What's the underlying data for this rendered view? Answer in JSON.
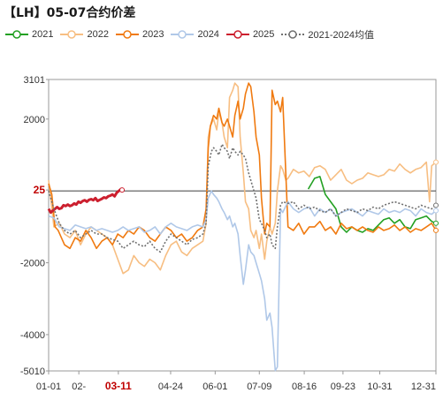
{
  "title": "【LH】05-07合约价差",
  "legend": [
    {
      "name": "2021",
      "color": "#22a022",
      "dash": ""
    },
    {
      "name": "2022",
      "color": "#f7be82",
      "dash": ""
    },
    {
      "name": "2023",
      "color": "#f07a10",
      "dash": ""
    },
    {
      "name": "2024",
      "color": "#b0c8e8",
      "dash": ""
    },
    {
      "name": "2025",
      "color": "#cc1f2e",
      "dash": ""
    },
    {
      "name": "2021-2024均值",
      "color": "#707070",
      "dash": "2,2"
    }
  ],
  "chart_data": {
    "type": "line",
    "title": "【LH】05-07合约价差",
    "xlabel": "",
    "ylabel": "",
    "ylim": [
      -5010,
      3101
    ],
    "grid": false,
    "legend_position": "top",
    "x_ticks": [
      "01-01",
      "02-",
      "03-11",
      "04-24",
      "06-01",
      "07-09",
      "08-16",
      "09-23",
      "10-31",
      "12-31"
    ],
    "highlight_x_tick": "03-11",
    "y_ticks": [
      3101,
      2000,
      25,
      -2000,
      -4000,
      -5010
    ],
    "highlight_y_tick": 25,
    "x_domain": [
      0,
      364
    ],
    "series": [
      {
        "name": "2021",
        "color": "#22a022",
        "x": [
          244,
          250,
          255,
          260,
          265,
          270,
          275,
          280,
          285,
          290,
          295,
          300,
          305,
          310,
          315,
          320,
          325,
          330,
          335,
          340,
          345,
          350,
          355,
          360,
          364
        ],
        "y": [
          50,
          350,
          400,
          -100,
          -300,
          -500,
          -1000,
          -1150,
          -1000,
          -1100,
          -1150,
          -1050,
          -1100,
          -950,
          -800,
          -750,
          -900,
          -800,
          -1000,
          -1050,
          -800,
          -750,
          -700,
          -850,
          -900
        ]
      },
      {
        "name": "2022",
        "color": "#f7be82",
        "x": [
          0,
          5,
          10,
          15,
          20,
          25,
          30,
          35,
          40,
          45,
          50,
          55,
          60,
          65,
          70,
          75,
          80,
          85,
          90,
          95,
          100,
          105,
          110,
          115,
          120,
          125,
          130,
          135,
          140,
          145,
          148,
          150,
          152,
          155,
          158,
          160,
          163,
          165,
          168,
          170,
          173,
          175,
          178,
          180,
          183,
          185,
          188,
          190,
          193,
          195,
          198,
          200,
          203,
          205,
          208,
          210,
          213,
          215,
          218,
          220,
          223,
          225,
          230,
          235,
          240,
          245,
          250,
          255,
          260,
          265,
          270,
          275,
          280,
          285,
          290,
          295,
          300,
          305,
          310,
          315,
          320,
          325,
          330,
          335,
          340,
          345,
          350,
          355,
          358,
          360,
          364
        ],
        "y": [
          300,
          -1000,
          -900,
          -1200,
          -1300,
          -1100,
          -1500,
          -1200,
          -1000,
          -1100,
          -1200,
          -1300,
          -1500,
          -1900,
          -2300,
          -2200,
          -1800,
          -2000,
          -2100,
          -1900,
          -2000,
          -2200,
          -1800,
          -1500,
          -1400,
          -1700,
          -1800,
          -1600,
          -1500,
          -1400,
          -900,
          1500,
          1800,
          2000,
          1700,
          2200,
          1900,
          1500,
          1200,
          2600,
          2800,
          3000,
          2900,
          1500,
          500,
          -300,
          -500,
          -1100,
          -1300,
          -1100,
          -1600,
          -1200,
          -1900,
          -1400,
          -1000,
          -1200,
          -900,
          0,
          700,
          600,
          300,
          350,
          600,
          500,
          550,
          400,
          650,
          700,
          600,
          300,
          450,
          600,
          300,
          200,
          300,
          350,
          500,
          450,
          400,
          450,
          600,
          550,
          750,
          600,
          500,
          600,
          650,
          800,
          -300,
          700,
          800
        ]
      },
      {
        "name": "2023",
        "color": "#f07a10",
        "x": [
          0,
          3,
          6,
          9,
          12,
          15,
          20,
          25,
          30,
          35,
          40,
          45,
          50,
          55,
          60,
          65,
          70,
          75,
          80,
          85,
          90,
          95,
          100,
          105,
          110,
          115,
          120,
          125,
          130,
          135,
          140,
          145,
          148,
          150,
          152,
          155,
          158,
          160,
          163,
          165,
          168,
          170,
          173,
          175,
          178,
          180,
          183,
          185,
          188,
          190,
          193,
          195,
          198,
          200,
          203,
          205,
          208,
          210,
          213,
          215,
          218,
          220,
          225,
          230,
          235,
          240,
          245,
          250,
          255,
          260,
          265,
          270,
          275,
          280,
          285,
          290,
          295,
          300,
          305,
          310,
          315,
          320,
          325,
          330,
          335,
          340,
          345,
          350,
          355,
          360,
          364
        ],
        "y": [
          200,
          -100,
          -1000,
          -1100,
          -1300,
          -1500,
          -1600,
          -1300,
          -1400,
          -1100,
          -1300,
          -1600,
          -1400,
          -1300,
          -1500,
          -1200,
          -1300,
          -1100,
          -1200,
          -1000,
          -1100,
          -1300,
          -1400,
          -1200,
          -1000,
          -1100,
          -1300,
          -1200,
          -1400,
          -1300,
          -1100,
          -1000,
          -500,
          1200,
          1800,
          2100,
          2000,
          2300,
          1900,
          1800,
          2000,
          1800,
          1500,
          2100,
          2500,
          2000,
          2300,
          2700,
          3000,
          2900,
          2200,
          1500,
          1000,
          -200,
          -1200,
          -900,
          -1000,
          2800,
          2400,
          2500,
          2200,
          2600,
          -1000,
          -1100,
          -900,
          -1200,
          -1000,
          -1000,
          -850,
          -1100,
          -1000,
          -1200,
          -900,
          -1050,
          -1000,
          -1100,
          -1000,
          -1100,
          -1150,
          -1000,
          -1100,
          -1050,
          -950,
          -1100,
          -1000,
          -1150,
          -1050,
          -1100,
          -1000,
          -900,
          -1100
        ]
      },
      {
        "name": "2024",
        "color": "#b0c8e8",
        "x": [
          0,
          5,
          10,
          15,
          20,
          25,
          30,
          35,
          40,
          45,
          50,
          55,
          60,
          65,
          70,
          75,
          80,
          85,
          90,
          95,
          100,
          105,
          110,
          115,
          120,
          125,
          130,
          135,
          140,
          145,
          148,
          150,
          153,
          155,
          158,
          160,
          163,
          165,
          168,
          170,
          173,
          175,
          178,
          180,
          183,
          185,
          188,
          190,
          193,
          195,
          198,
          200,
          203,
          205,
          208,
          210,
          213,
          215,
          218,
          220,
          225,
          230,
          235,
          240,
          245,
          250,
          255,
          260,
          265,
          270,
          275,
          280,
          285,
          290,
          295,
          300,
          305,
          310,
          315,
          320,
          325,
          330,
          335,
          340,
          345,
          350,
          355,
          360,
          364
        ],
        "y": [
          -700,
          -750,
          -1000,
          -1050,
          -1100,
          -950,
          -1000,
          -1050,
          -1000,
          -1100,
          -1050,
          -1100,
          -1150,
          -1100,
          -1000,
          -1100,
          -1050,
          -1000,
          -1150,
          -1100,
          -1000,
          -1200,
          -1000,
          -900,
          -1000,
          -1050,
          -1100,
          -1000,
          -950,
          -1000,
          -800,
          -200,
          0,
          -100,
          -200,
          -300,
          -500,
          -600,
          -800,
          -700,
          -1000,
          -900,
          -1200,
          -1800,
          -2600,
          -2200,
          -1500,
          -1700,
          -1800,
          -2000,
          -2300,
          -2500,
          -3000,
          -3600,
          -3400,
          -3800,
          -5000,
          -4900,
          -500,
          -600,
          -300,
          -500,
          -600,
          -500,
          -450,
          -700,
          -500,
          -600,
          -500,
          -700,
          -600,
          -550,
          -500,
          -600,
          -700,
          -550,
          -600,
          -650,
          -500,
          -600,
          -550,
          -600,
          -500,
          -550,
          -700,
          -500,
          -600,
          -650,
          -550
        ]
      },
      {
        "name": "2025",
        "color": "#cc1f2e",
        "x": [
          0,
          2,
          4,
          6,
          8,
          10,
          12,
          14,
          16,
          18,
          20,
          22,
          24,
          26,
          28,
          30,
          32,
          34,
          36,
          38,
          40,
          42,
          44,
          46,
          48,
          50,
          52,
          54,
          56,
          58,
          60,
          62,
          64,
          66,
          68,
          69
        ],
        "y": [
          -500,
          -600,
          -550,
          -500,
          -450,
          -500,
          -480,
          -400,
          -420,
          -380,
          -420,
          -400,
          -350,
          -380,
          -300,
          -330,
          -280,
          -260,
          -300,
          -250,
          -230,
          -260,
          -200,
          -280,
          -250,
          -220,
          -180,
          -200,
          -150,
          -130,
          -100,
          -150,
          -50,
          0,
          50,
          25
        ]
      },
      {
        "name": "2021-2024均值",
        "color": "#707070",
        "dash": "2,2",
        "x": [
          0,
          5,
          10,
          15,
          20,
          25,
          30,
          35,
          40,
          45,
          50,
          55,
          60,
          65,
          70,
          75,
          80,
          85,
          90,
          95,
          100,
          105,
          110,
          115,
          120,
          125,
          130,
          135,
          140,
          145,
          148,
          150,
          153,
          155,
          158,
          160,
          163,
          165,
          168,
          170,
          173,
          175,
          178,
          180,
          183,
          185,
          188,
          190,
          193,
          195,
          198,
          200,
          203,
          205,
          208,
          210,
          213,
          215,
          218,
          220,
          225,
          230,
          235,
          240,
          245,
          250,
          255,
          260,
          265,
          270,
          275,
          280,
          285,
          290,
          295,
          300,
          305,
          310,
          315,
          320,
          325,
          330,
          335,
          340,
          345,
          350,
          355,
          360,
          364
        ],
        "y": [
          0,
          -500,
          -900,
          -1100,
          -1200,
          -1100,
          -1300,
          -1200,
          -1100,
          -1200,
          -1200,
          -1300,
          -1350,
          -1400,
          -1600,
          -1500,
          -1400,
          -1500,
          -1550,
          -1400,
          -1600,
          -1700,
          -1400,
          -1200,
          -1300,
          -1400,
          -1500,
          -1350,
          -1300,
          -1200,
          -900,
          700,
          1100,
          1200,
          1100,
          1000,
          1300,
          1200,
          1100,
          900,
          1200,
          1100,
          1000,
          1100,
          1000,
          900,
          500,
          300,
          0,
          -200,
          -800,
          -900,
          -1100,
          -1300,
          -1200,
          -1500,
          -1600,
          -1000,
          -400,
          -300,
          -350,
          -300,
          -500,
          -400,
          -500,
          -450,
          -550,
          -600,
          -500,
          -700,
          -600,
          -500,
          -550,
          -600,
          -500,
          -550,
          -450,
          -500,
          -400,
          -350,
          -300,
          -350,
          -400,
          -450,
          -500,
          -400,
          -450,
          -500,
          -400
        ]
      }
    ]
  }
}
